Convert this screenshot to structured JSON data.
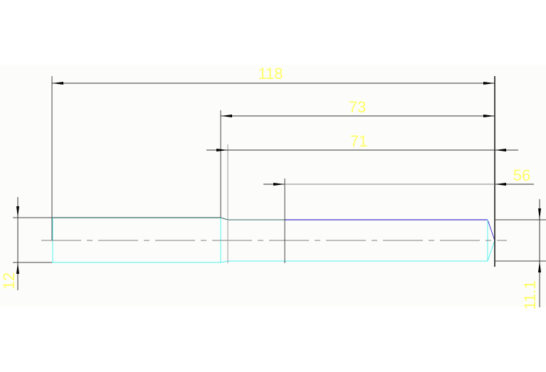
{
  "dimensions": {
    "overall_length": "118",
    "shoulder_to_end": "73",
    "step_to_end": "71",
    "section_to_end": "56",
    "left_diameter": "12",
    "right_diameter": "11.1"
  },
  "colors": {
    "background": "#fcfdfa",
    "dimension_text": "#ffff66",
    "part_outline_cyan": "#55eeee",
    "part_outline_blue": "#4433cc",
    "dimension_lines": "#333333",
    "centerline": "#999999"
  }
}
